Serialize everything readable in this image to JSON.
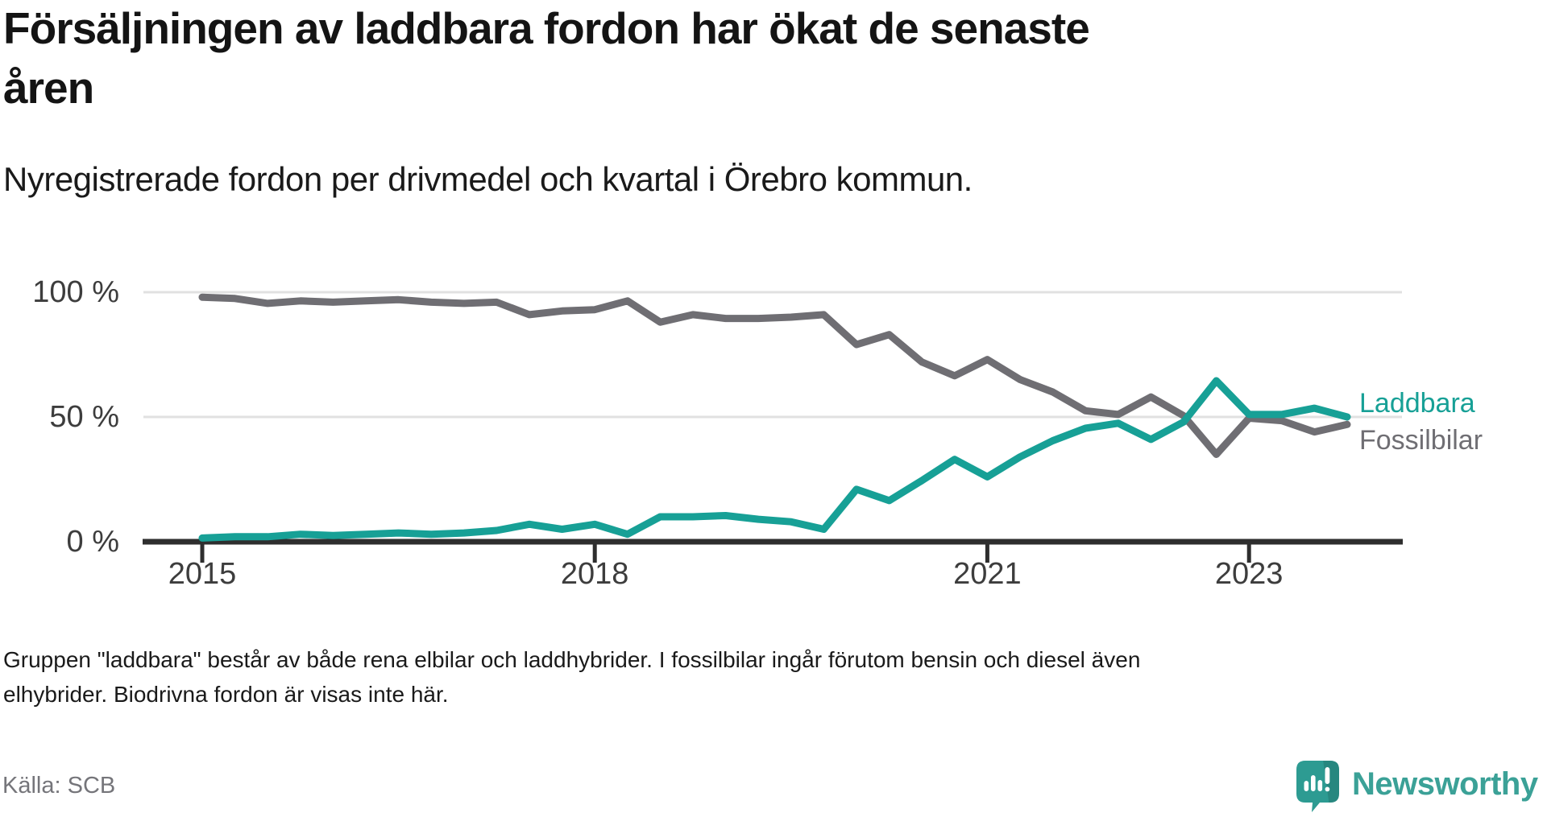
{
  "title": "Försäljningen av laddbara fordon har ökat de senaste\nåren",
  "subtitle": "Nyregistrerade fordon per drivmedel och kvartal i Örebro kommun.",
  "footnote": "Gruppen \"laddbara\" består av både rena elbilar och laddhybrider. I fossilbilar ingår förutom bensin och diesel även\nelhybrider. Biodrivna fordon är visas inte här.",
  "source": "Källa: SCB",
  "branding": {
    "logo_text": "Newsworthy",
    "logo_icon": "newsworthy-speech-bubble-bar-chart-icon",
    "brand_color": "#3ba197",
    "icon_color": "#2d9b92"
  },
  "colors": {
    "accent_teal": "#17a096",
    "neutral_gray": "#6f6e73",
    "gridline": "#e1e1e1",
    "axis": "#2e2e2e",
    "axis_text": "#3d3d3d"
  },
  "chart_data": {
    "type": "line",
    "unit": "percent",
    "frequency": "quarterly",
    "x_start": "2015-Q1",
    "x_end": "2023-Q4",
    "ylim": [
      0,
      100
    ],
    "grid": "horizontal",
    "legend_position": "right-of-line-ends",
    "y_ticks": [
      {
        "value": 100,
        "label": "100 %"
      },
      {
        "value": 50,
        "label": "50 %"
      },
      {
        "value": 0,
        "label": "0 %"
      }
    ],
    "x_ticks": [
      {
        "year": 2015,
        "label": "2015"
      },
      {
        "year": 2018,
        "label": "2018"
      },
      {
        "year": 2021,
        "label": "2021"
      },
      {
        "year": 2023,
        "label": "2023"
      }
    ],
    "series": [
      {
        "name": "Fossilbilar",
        "color": "#6f6e73",
        "values": [
          98,
          97.5,
          95.5,
          96.5,
          96,
          96.5,
          97,
          96,
          95.5,
          96,
          91,
          92.5,
          93,
          96.5,
          88,
          91,
          89.5,
          89.5,
          90,
          91,
          79,
          83,
          72,
          66.5,
          73,
          65,
          60,
          52.5,
          51,
          58,
          50.5,
          35,
          49.5,
          48.5,
          44,
          47
        ]
      },
      {
        "name": "Laddbara",
        "color": "#17a096",
        "values": [
          1.5,
          2,
          2,
          3,
          2.5,
          3,
          3.5,
          3,
          3.5,
          4.5,
          7,
          5,
          7,
          3,
          10,
          10,
          10.5,
          9,
          8,
          5,
          21,
          16.5,
          24.5,
          33,
          26,
          34,
          40.5,
          45.5,
          47.5,
          41,
          48,
          64.5,
          51,
          51,
          53.5,
          50
        ]
      }
    ]
  }
}
